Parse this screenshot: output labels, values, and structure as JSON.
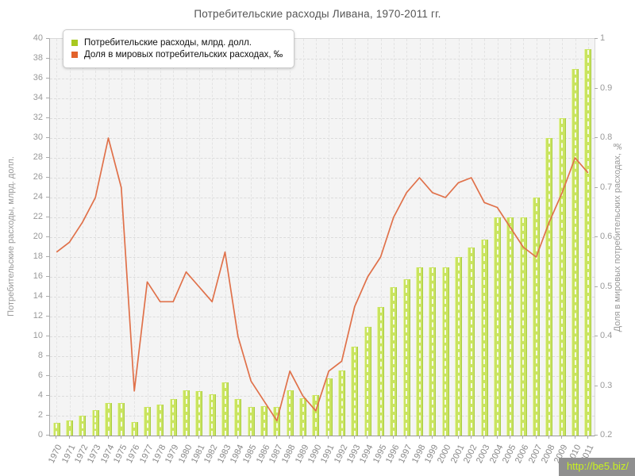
{
  "title": "Потребительские расходы Ливана, 1970-2011 гг.",
  "legend": [
    {
      "label": "Потребительские расходы, млрд. долл.",
      "color": "#a8c820"
    },
    {
      "label": "Доля в мировых потребительских расходах, ‰",
      "color": "#e2622b"
    }
  ],
  "watermark": {
    "label": "http://be5.biz/"
  },
  "chart_data": {
    "type": "bar",
    "title": "Потребительские расходы Ливана, 1970-2011 гг.",
    "categories": [
      1970,
      1971,
      1972,
      1973,
      1974,
      1975,
      1976,
      1977,
      1978,
      1979,
      1980,
      1981,
      1982,
      1983,
      1984,
      1985,
      1986,
      1987,
      1988,
      1989,
      1990,
      1991,
      1992,
      1993,
      1994,
      1995,
      1996,
      1997,
      1998,
      1999,
      2000,
      2001,
      2002,
      2003,
      2004,
      2005,
      2006,
      2007,
      2008,
      2009,
      2010,
      2011
    ],
    "series": [
      {
        "name": "Потребительские расходы, млрд. долл.",
        "type": "bar",
        "axis": "left",
        "color": "#c9e45f",
        "values": [
          1.3,
          1.5,
          2.0,
          2.6,
          3.3,
          3.3,
          1.4,
          2.9,
          3.1,
          3.7,
          4.6,
          4.5,
          4.2,
          5.4,
          3.7,
          2.9,
          3.0,
          2.9,
          4.6,
          3.8,
          4.1,
          5.8,
          6.6,
          9.0,
          11.0,
          13.0,
          15.0,
          15.8,
          17.0,
          17.0,
          17.0,
          18.0,
          19.0,
          19.8,
          22.0,
          22.0,
          22.0,
          24.0,
          30.0,
          32.0,
          37.0,
          39.0
        ]
      },
      {
        "name": "Доля в мировых потребительских расходах, ‰",
        "type": "line",
        "axis": "right",
        "color": "#e0714a",
        "values": [
          0.57,
          0.59,
          0.63,
          0.68,
          0.8,
          0.7,
          0.29,
          0.51,
          0.47,
          0.47,
          0.53,
          0.5,
          0.47,
          0.57,
          0.4,
          0.31,
          0.27,
          0.23,
          0.33,
          0.28,
          0.25,
          0.33,
          0.35,
          0.46,
          0.52,
          0.56,
          0.64,
          0.69,
          0.72,
          0.69,
          0.68,
          0.71,
          0.72,
          0.67,
          0.66,
          0.62,
          0.58,
          0.56,
          0.63,
          0.69,
          0.76,
          0.73
        ]
      }
    ],
    "left_axis": {
      "label": "Потребительские расходы, млрд. долл.",
      "min": 0,
      "max": 40,
      "step": 2
    },
    "right_axis": {
      "label": "Доля в мировых потребительских расходах, ‰",
      "min": 0.2,
      "max": 1.0,
      "step": 0.1
    },
    "grid": true,
    "legend_position": "top-left"
  }
}
